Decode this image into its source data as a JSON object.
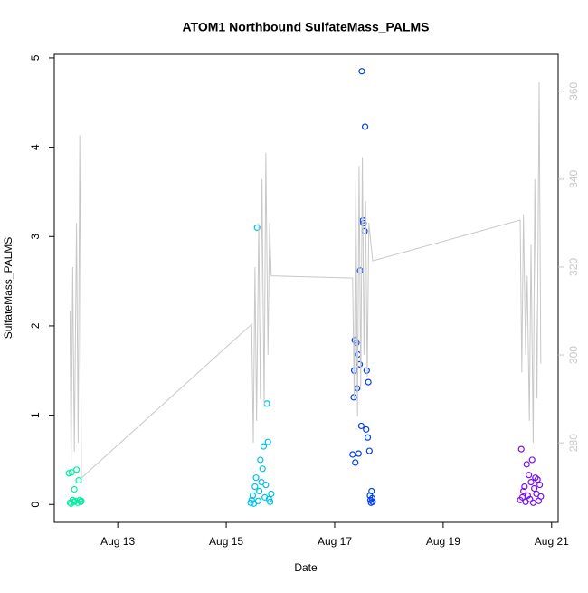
{
  "chart_data": {
    "type": "scatter",
    "title": "ATOM1 Northbound SulfateMass_PALMS",
    "x_label": "Date",
    "y_label": "SulfateMass_PALMS",
    "xlim": [
      11.83,
      21.12
    ],
    "ylim": [
      -0.2,
      5.04
    ],
    "y2lim": [
      261.9,
      368.4
    ],
    "xticks": [
      {
        "value": 13,
        "label": "Aug 13"
      },
      {
        "value": 15,
        "label": "Aug 15"
      },
      {
        "value": 17,
        "label": "Aug 17"
      },
      {
        "value": 19,
        "label": "Aug 19"
      },
      {
        "value": 21,
        "label": "Aug 21"
      }
    ],
    "yticks": [
      0,
      1,
      2,
      3,
      4,
      5
    ],
    "y2ticks": [
      280,
      300,
      320,
      340,
      360
    ],
    "y2_color": "#c8c8c8",
    "series": [
      {
        "color": "#00f0a0",
        "x": [
          12.1,
          12.12,
          12.14,
          12.15,
          12.17,
          12.19,
          12.2,
          12.22,
          12.24,
          12.26,
          12.28,
          12.3,
          12.32,
          12.33
        ],
        "values": [
          0.35,
          0.02,
          0.01,
          0.36,
          0.05,
          0.03,
          0.17,
          0.04,
          0.39,
          0.02,
          0.27,
          0.05,
          0.03,
          0.04
        ]
      },
      {
        "color": "#00c0ee",
        "x": [
          15.45,
          15.47,
          15.49,
          15.51,
          15.53,
          15.55,
          15.57,
          15.59,
          15.61,
          15.63,
          15.65,
          15.67,
          15.69,
          15.71,
          15.73,
          15.75,
          15.77,
          15.79,
          15.81,
          15.83
        ],
        "values": [
          0.02,
          0.05,
          0.1,
          0.01,
          0.2,
          0.3,
          3.1,
          0.04,
          0.15,
          0.5,
          0.25,
          0.4,
          0.65,
          0.08,
          0.22,
          1.13,
          0.7,
          0.06,
          0.03,
          0.12
        ]
      },
      {
        "color": "#0040f0",
        "x": [
          17.33,
          17.35,
          17.37,
          17.38,
          17.4,
          17.41,
          17.43,
          17.44,
          17.46,
          17.47,
          17.49,
          17.5,
          17.52,
          17.53,
          17.55,
          17.56,
          17.58,
          17.59,
          17.61,
          17.62,
          17.64,
          17.65,
          17.66,
          17.67,
          17.68,
          17.69,
          17.7,
          17.36
        ],
        "values": [
          0.56,
          1.2,
          1.84,
          0.47,
          1.81,
          1.3,
          1.68,
          0.57,
          1.57,
          2.62,
          0.88,
          4.85,
          3.18,
          3.15,
          3.06,
          4.23,
          0.84,
          1.5,
          0.75,
          1.37,
          0.6,
          0.1,
          0.05,
          0.02,
          0.15,
          0.07,
          0.03,
          1.5
        ]
      },
      {
        "color": "#7a10f0",
        "x": [
          20.42,
          20.44,
          20.46,
          20.48,
          20.5,
          20.52,
          20.54,
          20.56,
          20.58,
          20.6,
          20.62,
          20.64,
          20.66,
          20.68,
          20.7,
          20.72,
          20.74,
          20.76,
          20.78,
          20.8
        ],
        "values": [
          0.05,
          0.62,
          0.08,
          0.15,
          0.2,
          0.03,
          0.45,
          0.1,
          0.33,
          0.06,
          0.25,
          0.5,
          0.02,
          0.18,
          0.3,
          0.12,
          0.28,
          0.04,
          0.22,
          0.09
        ]
      },
      {
        "type": "line",
        "axis": "y2",
        "color": "#c8c8c8",
        "x": [
          12.12,
          12.14,
          12.17,
          12.2,
          12.24,
          12.27,
          12.3,
          12.33,
          15.47,
          15.5,
          15.53,
          15.56,
          15.6,
          15.63,
          15.66,
          15.7,
          15.73,
          15.77,
          15.8,
          15.83,
          17.33,
          17.36,
          17.39,
          17.42,
          17.45,
          17.48,
          17.51,
          17.54,
          17.57,
          17.6,
          17.63,
          17.7,
          20.42,
          20.45,
          20.48,
          20.52,
          20.55,
          20.59,
          20.62,
          20.66,
          20.69,
          20.73,
          20.77,
          20.8
        ],
        "values": [
          310,
          275,
          320,
          278,
          330,
          280,
          350,
          272,
          307,
          280,
          320,
          285,
          330,
          290,
          340,
          288,
          346,
          300,
          330,
          318,
          317.5,
          290,
          340,
          286,
          343,
          292,
          345,
          300,
          335,
          295,
          330,
          321.4,
          330.7,
          296,
          332,
          300,
          318,
          285,
          325,
          280,
          340,
          290,
          362,
          298
        ]
      }
    ]
  }
}
